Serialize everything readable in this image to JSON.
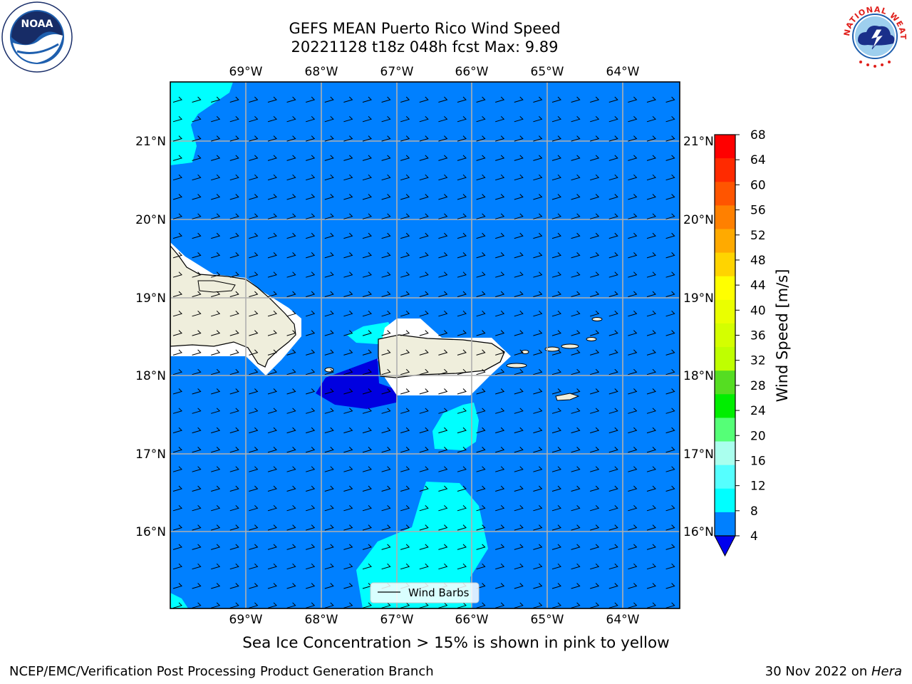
{
  "title": {
    "line1": "GEFS MEAN Puerto Rico Wind Speed",
    "line2": "20221128 t18z 048h fcst   Max: 9.89"
  },
  "map": {
    "lon_labels": [
      "69°W",
      "68°W",
      "67°W",
      "66°W",
      "65°W",
      "64°W"
    ],
    "lat_labels": [
      "21°N",
      "20°N",
      "19°N",
      "18°N",
      "17°N",
      "16°N"
    ],
    "lon_values": [
      -69,
      -68,
      -67,
      -66,
      -65,
      -64
    ],
    "lat_values": [
      21,
      20,
      19,
      18,
      17,
      16
    ],
    "extent": {
      "lon_min": -70,
      "lon_max": -63.25,
      "lat_min": 15.0,
      "lat_max": 21.75
    },
    "legend_label": "Wind Barbs",
    "colors": {
      "ocean_4_8": "#0080ff",
      "ocean_8_12": "#00ffff",
      "below_4": "#0000e0",
      "land": "#efeedc",
      "grid": "#b0b0b0"
    }
  },
  "colorbar": {
    "title": "Wind Speed [m/s]",
    "ticks": [
      "68",
      "64",
      "60",
      "56",
      "52",
      "48",
      "44",
      "40",
      "36",
      "32",
      "28",
      "24",
      "20",
      "16",
      "12",
      "8",
      "4"
    ],
    "levels_top_to_bottom": [
      "#ff0000",
      "#ff2a00",
      "#ff5500",
      "#ff8000",
      "#ffaa00",
      "#ffd400",
      "#ffff00",
      "#eaff00",
      "#d4ff00",
      "#bfff00",
      "#55dd22",
      "#00ee00",
      "#55ff77",
      "#aaffee",
      "#55ffff",
      "#00ffff",
      "#0080ff"
    ],
    "extend_color": "#0000ee"
  },
  "logos": {
    "noaa_text": "NOAA",
    "nws_text": "NATIONAL WEATHER SERVICE"
  },
  "sea_ice_note": "Sea Ice Concentration > 15% is shown in pink to yellow",
  "footer": {
    "left": "NCEP/EMC/Verification Post Processing Product Generation Branch",
    "right_prefix": "30 Nov 2022 on ",
    "right_machine": "Hera"
  }
}
